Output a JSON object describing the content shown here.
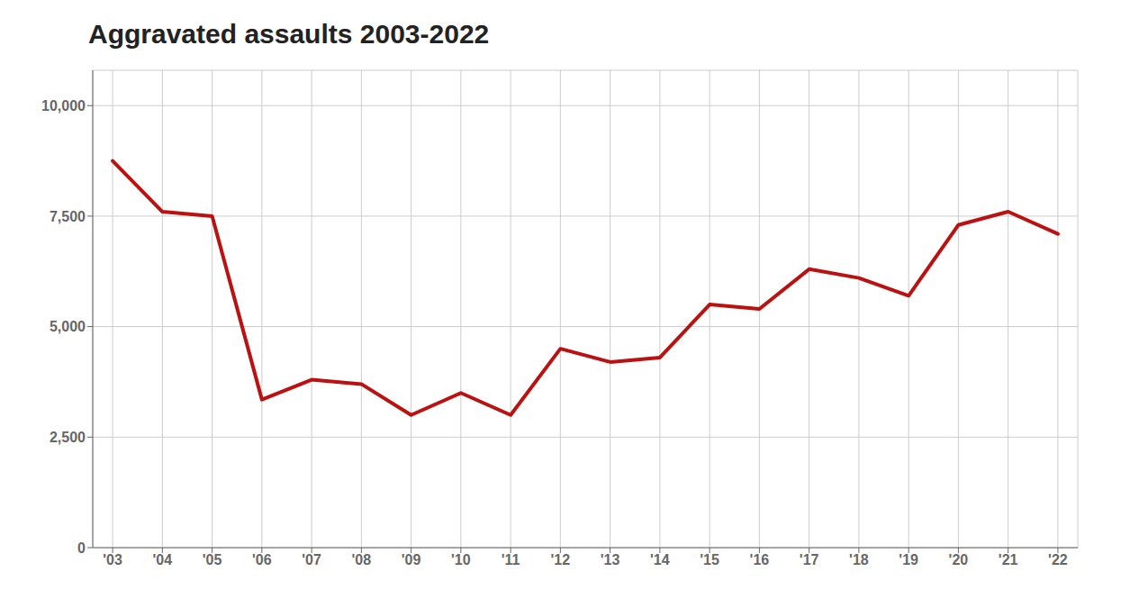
{
  "chart_data": {
    "type": "line",
    "title": "Aggravated assaults 2003-2022",
    "x": [
      2003,
      2004,
      2005,
      2006,
      2007,
      2008,
      2009,
      2010,
      2011,
      2012,
      2013,
      2014,
      2015,
      2016,
      2017,
      2018,
      2019,
      2020,
      2021,
      2022
    ],
    "values": [
      8750,
      7600,
      7500,
      3350,
      3800,
      3700,
      3000,
      3500,
      3000,
      4500,
      4200,
      4300,
      5500,
      5400,
      6300,
      6100,
      5700,
      7300,
      7600,
      7100
    ],
    "color": "#bb1111",
    "xlim": [
      2002.6,
      2022.4
    ],
    "xticks": [
      {
        "value": 2003,
        "label": "'03"
      },
      {
        "value": 2004,
        "label": "'04"
      },
      {
        "value": 2005,
        "label": "'05"
      },
      {
        "value": 2006,
        "label": "'06"
      },
      {
        "value": 2007,
        "label": "'07"
      },
      {
        "value": 2008,
        "label": "'08"
      },
      {
        "value": 2009,
        "label": "'09"
      },
      {
        "value": 2010,
        "label": "'10"
      },
      {
        "value": 2011,
        "label": "'11"
      },
      {
        "value": 2012,
        "label": "'12"
      },
      {
        "value": 2013,
        "label": "'13"
      },
      {
        "value": 2014,
        "label": "'14"
      },
      {
        "value": 2015,
        "label": "'15"
      },
      {
        "value": 2016,
        "label": "'16"
      },
      {
        "value": 2017,
        "label": "'17"
      },
      {
        "value": 2018,
        "label": "'18"
      },
      {
        "value": 2019,
        "label": "'19"
      },
      {
        "value": 2020,
        "label": "'20"
      },
      {
        "value": 2021,
        "label": "'21"
      },
      {
        "value": 2022,
        "label": "'22"
      }
    ],
    "ylim": [
      0,
      10800
    ],
    "yticks": [
      0,
      {
        "value": 2500,
        "label": "2,500"
      },
      {
        "value": 5000,
        "label": "5,000"
      },
      {
        "value": 7500,
        "label": "7,500"
      },
      {
        "value": 10000,
        "label": "10,000"
      }
    ],
    "grid": true
  }
}
